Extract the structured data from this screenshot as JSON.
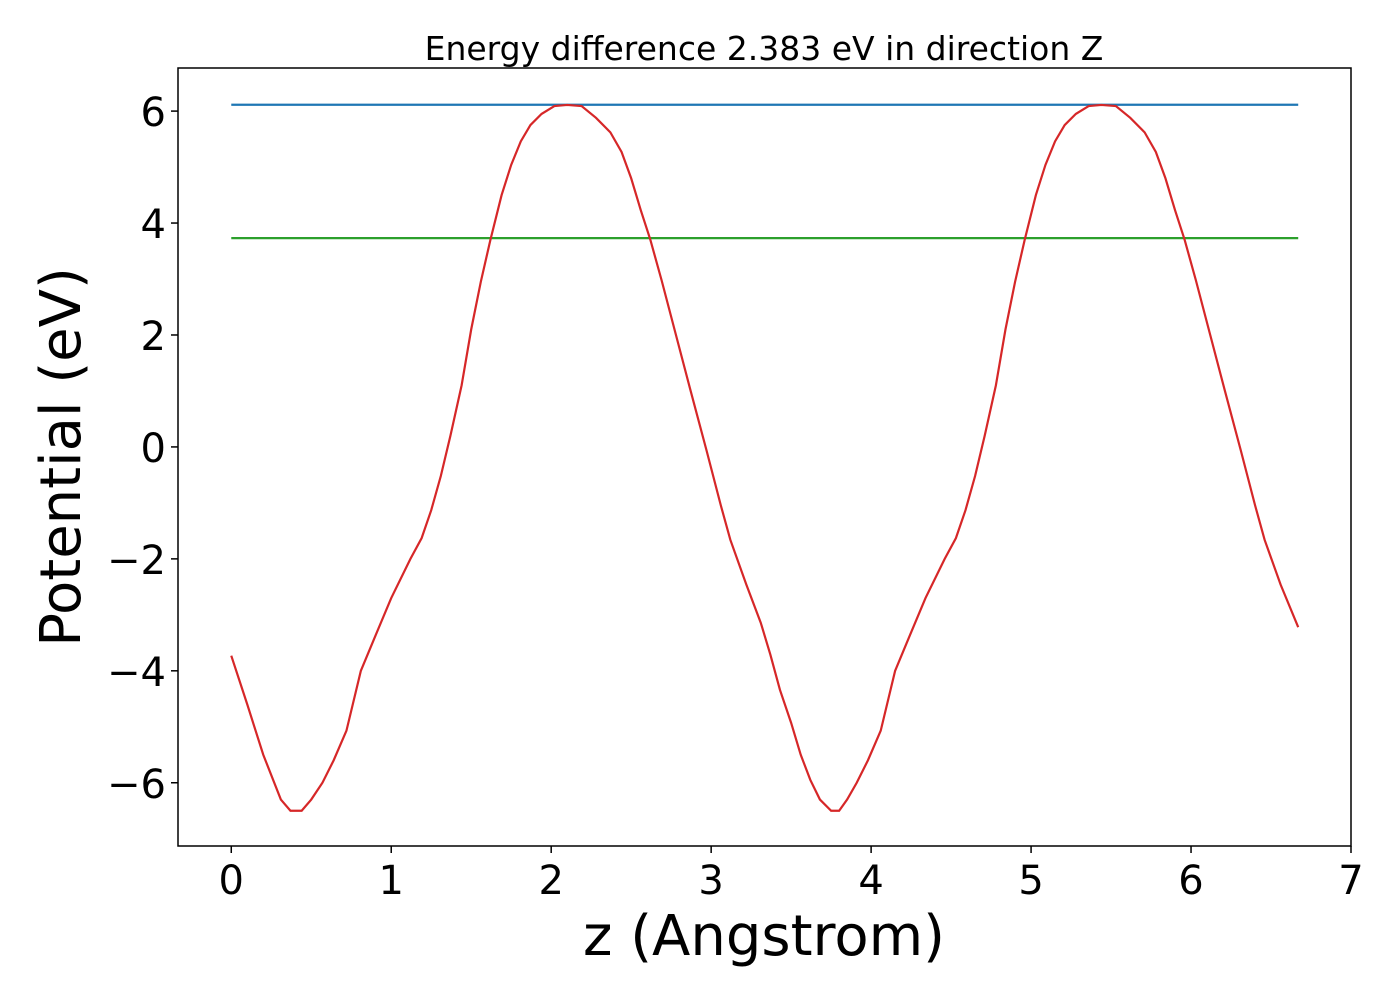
{
  "chart_data": {
    "type": "line",
    "title": "Energy difference 2.383 eV in direction Z",
    "xlabel": "z (Angstrom)",
    "ylabel": "Potential (eV)",
    "xlim": [
      -0.333,
      7.0
    ],
    "ylim": [
      -7.13,
      6.77
    ],
    "xticks": [
      0,
      1,
      2,
      3,
      4,
      5,
      6,
      7
    ],
    "yticks": [
      {
        "value": -6,
        "label": "−6"
      },
      {
        "value": -4,
        "label": "−4"
      },
      {
        "value": -2,
        "label": "−2"
      },
      0,
      2,
      4,
      6
    ],
    "grid": false,
    "series": [
      {
        "color": "#d62728",
        "x": [
          0,
          0.1,
          0.2,
          0.31,
          0.37,
          0.44,
          0.5,
          0.57,
          0.64,
          0.72,
          0.81,
          0.89,
          1.0,
          1.12,
          1.19,
          1.25,
          1.31,
          1.37,
          1.44,
          1.5,
          1.56,
          1.62,
          1.69,
          1.75,
          1.81,
          1.87,
          1.94,
          2.02,
          2.1,
          2.19,
          2.28,
          2.37,
          2.44,
          2.5,
          2.56,
          2.62,
          2.69,
          2.78,
          2.87,
          2.97,
          3.06,
          3.12,
          3.22,
          3.31,
          3.37,
          3.43,
          3.5,
          3.56,
          3.62,
          3.68,
          3.75,
          3.8,
          3.85,
          3.91,
          3.98,
          4.06,
          4.15,
          4.23,
          4.34,
          4.46,
          4.53,
          4.59,
          4.65,
          4.71,
          4.78,
          4.84,
          4.9,
          4.96,
          5.03,
          5.09,
          5.15,
          5.21,
          5.28,
          5.36,
          5.44,
          5.53,
          5.62,
          5.71,
          5.78,
          5.84,
          5.9,
          5.96,
          6.03,
          6.12,
          6.21,
          6.31,
          6.4,
          6.46,
          6.56,
          6.67
        ],
        "values": [
          -3.73,
          -4.6,
          -5.5,
          -6.3,
          -6.5,
          -6.5,
          -6.3,
          -6.0,
          -5.6,
          -5.07,
          -4.0,
          -3.45,
          -2.7,
          -2.0,
          -1.63,
          -1.13,
          -0.52,
          0.2,
          1.1,
          2.1,
          2.95,
          3.7,
          4.5,
          5.04,
          5.46,
          5.75,
          5.95,
          6.09,
          6.11,
          6.09,
          5.88,
          5.62,
          5.27,
          4.8,
          4.23,
          3.7,
          2.98,
          2.0,
          1.02,
          -0.05,
          -1.04,
          -1.66,
          -2.46,
          -3.14,
          -3.71,
          -4.34,
          -4.93,
          -5.5,
          -5.95,
          -6.3,
          -6.5,
          -6.5,
          -6.3,
          -6.0,
          -5.6,
          -5.07,
          -4.0,
          -3.45,
          -2.7,
          -2.0,
          -1.63,
          -1.13,
          -0.52,
          0.2,
          1.1,
          2.1,
          2.95,
          3.7,
          4.5,
          5.04,
          5.46,
          5.75,
          5.95,
          6.09,
          6.11,
          6.09,
          5.88,
          5.62,
          5.27,
          4.8,
          4.23,
          3.7,
          2.98,
          2.0,
          1.02,
          -0.05,
          -1.04,
          -1.66,
          -2.46,
          -3.22
        ]
      },
      {
        "color": "#1f77b4",
        "x": [
          0,
          6.67
        ],
        "values": [
          6.113,
          6.113
        ]
      },
      {
        "color": "#2ca02c",
        "x": [
          0,
          6.67
        ],
        "values": [
          3.73,
          3.73
        ]
      }
    ]
  }
}
